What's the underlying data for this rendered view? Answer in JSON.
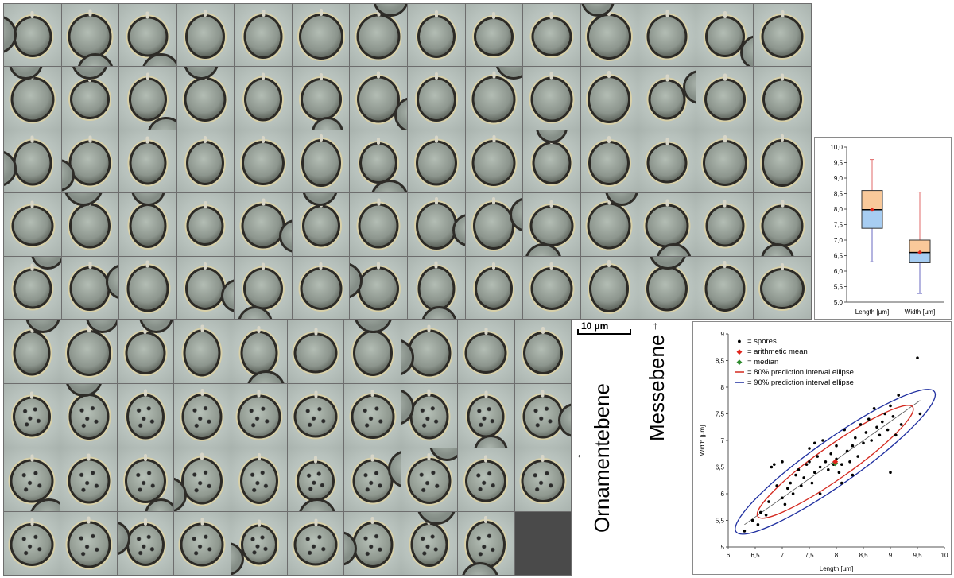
{
  "labels": {
    "messebene": "Messebene",
    "ornamentebene": "Ornamentebene",
    "scale_bar": "10 µm",
    "arrow_up": "↑",
    "arrow_left": "←"
  },
  "chart_data": [
    {
      "type": "box",
      "categories": [
        "Length [µm]",
        "Width [µm]"
      ],
      "boxes": [
        {
          "name": "Length [µm]",
          "min": 6.3,
          "q1": 7.38,
          "median": 7.98,
          "q3": 8.6,
          "max": 9.6,
          "mean": 7.98,
          "color_low": "#a7cdf2",
          "color_high": "#f9c99a"
        },
        {
          "name": "Width [µm]",
          "min": 5.28,
          "q1": 6.27,
          "median": 6.6,
          "q3": 7.0,
          "max": 8.55,
          "mean": 6.6,
          "color_low": "#a7cdf2",
          "color_high": "#f9c99a"
        }
      ],
      "y_ticks": [
        "10,0",
        "9,5",
        "9,0",
        "8,5",
        "8,0",
        "7,5",
        "7,0",
        "6,5",
        "6,0",
        "5,5",
        "5,0"
      ],
      "ylim": [
        5.0,
        10.0
      ],
      "grid": false
    },
    {
      "type": "scatter",
      "xlabel": "Length [µm]",
      "ylabel": "Width [µm]",
      "xlim": [
        6,
        10
      ],
      "ylim": [
        5,
        9
      ],
      "x_ticks": [
        "6",
        "6,5",
        "7",
        "7,5",
        "8",
        "8,5",
        "9",
        "9,5",
        "10"
      ],
      "y_ticks": [
        "9",
        "8,5",
        "8",
        "7,5",
        "7",
        "6,5",
        "6",
        "5,5",
        "5"
      ],
      "legend": [
        {
          "symbol": "●",
          "color": "#000000",
          "label": "= spores"
        },
        {
          "symbol": "◆",
          "color": "#e0241b",
          "label": "= arithmetic mean"
        },
        {
          "symbol": "◆",
          "color": "#2e8b2e",
          "label": "= median"
        },
        {
          "symbol": "line",
          "color": "#d42a20",
          "label": "= 80% prediction interval ellipse"
        },
        {
          "symbol": "line",
          "color": "#1f2fa0",
          "label": "= 90% prediction interval ellipse"
        }
      ],
      "legend_position": "top-left",
      "mean": [
        7.98,
        6.6
      ],
      "median": [
        7.98,
        6.6
      ],
      "points": [
        [
          6.3,
          5.3
        ],
        [
          6.45,
          5.5
        ],
        [
          6.55,
          5.42
        ],
        [
          6.6,
          5.65
        ],
        [
          6.7,
          5.6
        ],
        [
          6.75,
          5.85
        ],
        [
          6.8,
          6.5
        ],
        [
          6.85,
          6.55
        ],
        [
          6.9,
          6.15
        ],
        [
          7.0,
          5.92
        ],
        [
          7.05,
          5.8
        ],
        [
          7.1,
          6.1
        ],
        [
          7.15,
          6.2
        ],
        [
          7.2,
          6.0
        ],
        [
          7.25,
          6.35
        ],
        [
          7.3,
          6.45
        ],
        [
          7.35,
          6.15
        ],
        [
          7.4,
          6.3
        ],
        [
          7.45,
          6.55
        ],
        [
          7.5,
          6.6
        ],
        [
          7.5,
          6.85
        ],
        [
          7.55,
          6.2
        ],
        [
          7.6,
          6.4
        ],
        [
          7.65,
          6.7
        ],
        [
          7.7,
          6.5
        ],
        [
          7.7,
          6.0
        ],
        [
          7.75,
          7.0
        ],
        [
          7.8,
          6.6
        ],
        [
          7.85,
          6.45
        ],
        [
          7.9,
          6.75
        ],
        [
          7.95,
          6.55
        ],
        [
          8.0,
          6.9
        ],
        [
          8.0,
          6.65
        ],
        [
          8.05,
          6.4
        ],
        [
          8.1,
          6.2
        ],
        [
          8.1,
          6.55
        ],
        [
          8.15,
          7.2
        ],
        [
          8.2,
          6.8
        ],
        [
          8.25,
          6.6
        ],
        [
          8.3,
          6.9
        ],
        [
          8.35,
          7.05
        ],
        [
          8.4,
          6.7
        ],
        [
          8.45,
          7.3
        ],
        [
          8.5,
          6.95
        ],
        [
          8.55,
          7.15
        ],
        [
          8.6,
          7.4
        ],
        [
          8.65,
          7.0
        ],
        [
          8.7,
          7.6
        ],
        [
          8.75,
          7.25
        ],
        [
          8.8,
          7.1
        ],
        [
          8.85,
          7.35
        ],
        [
          8.9,
          7.5
        ],
        [
          8.95,
          7.2
        ],
        [
          9.0,
          6.4
        ],
        [
          9.0,
          7.65
        ],
        [
          9.05,
          7.45
        ],
        [
          9.1,
          7.1
        ],
        [
          9.15,
          7.85
        ],
        [
          9.2,
          7.3
        ],
        [
          9.5,
          8.55
        ],
        [
          9.55,
          7.5
        ],
        [
          7.0,
          6.6
        ],
        [
          7.6,
          6.95
        ],
        [
          8.3,
          6.35
        ]
      ]
    }
  ]
}
